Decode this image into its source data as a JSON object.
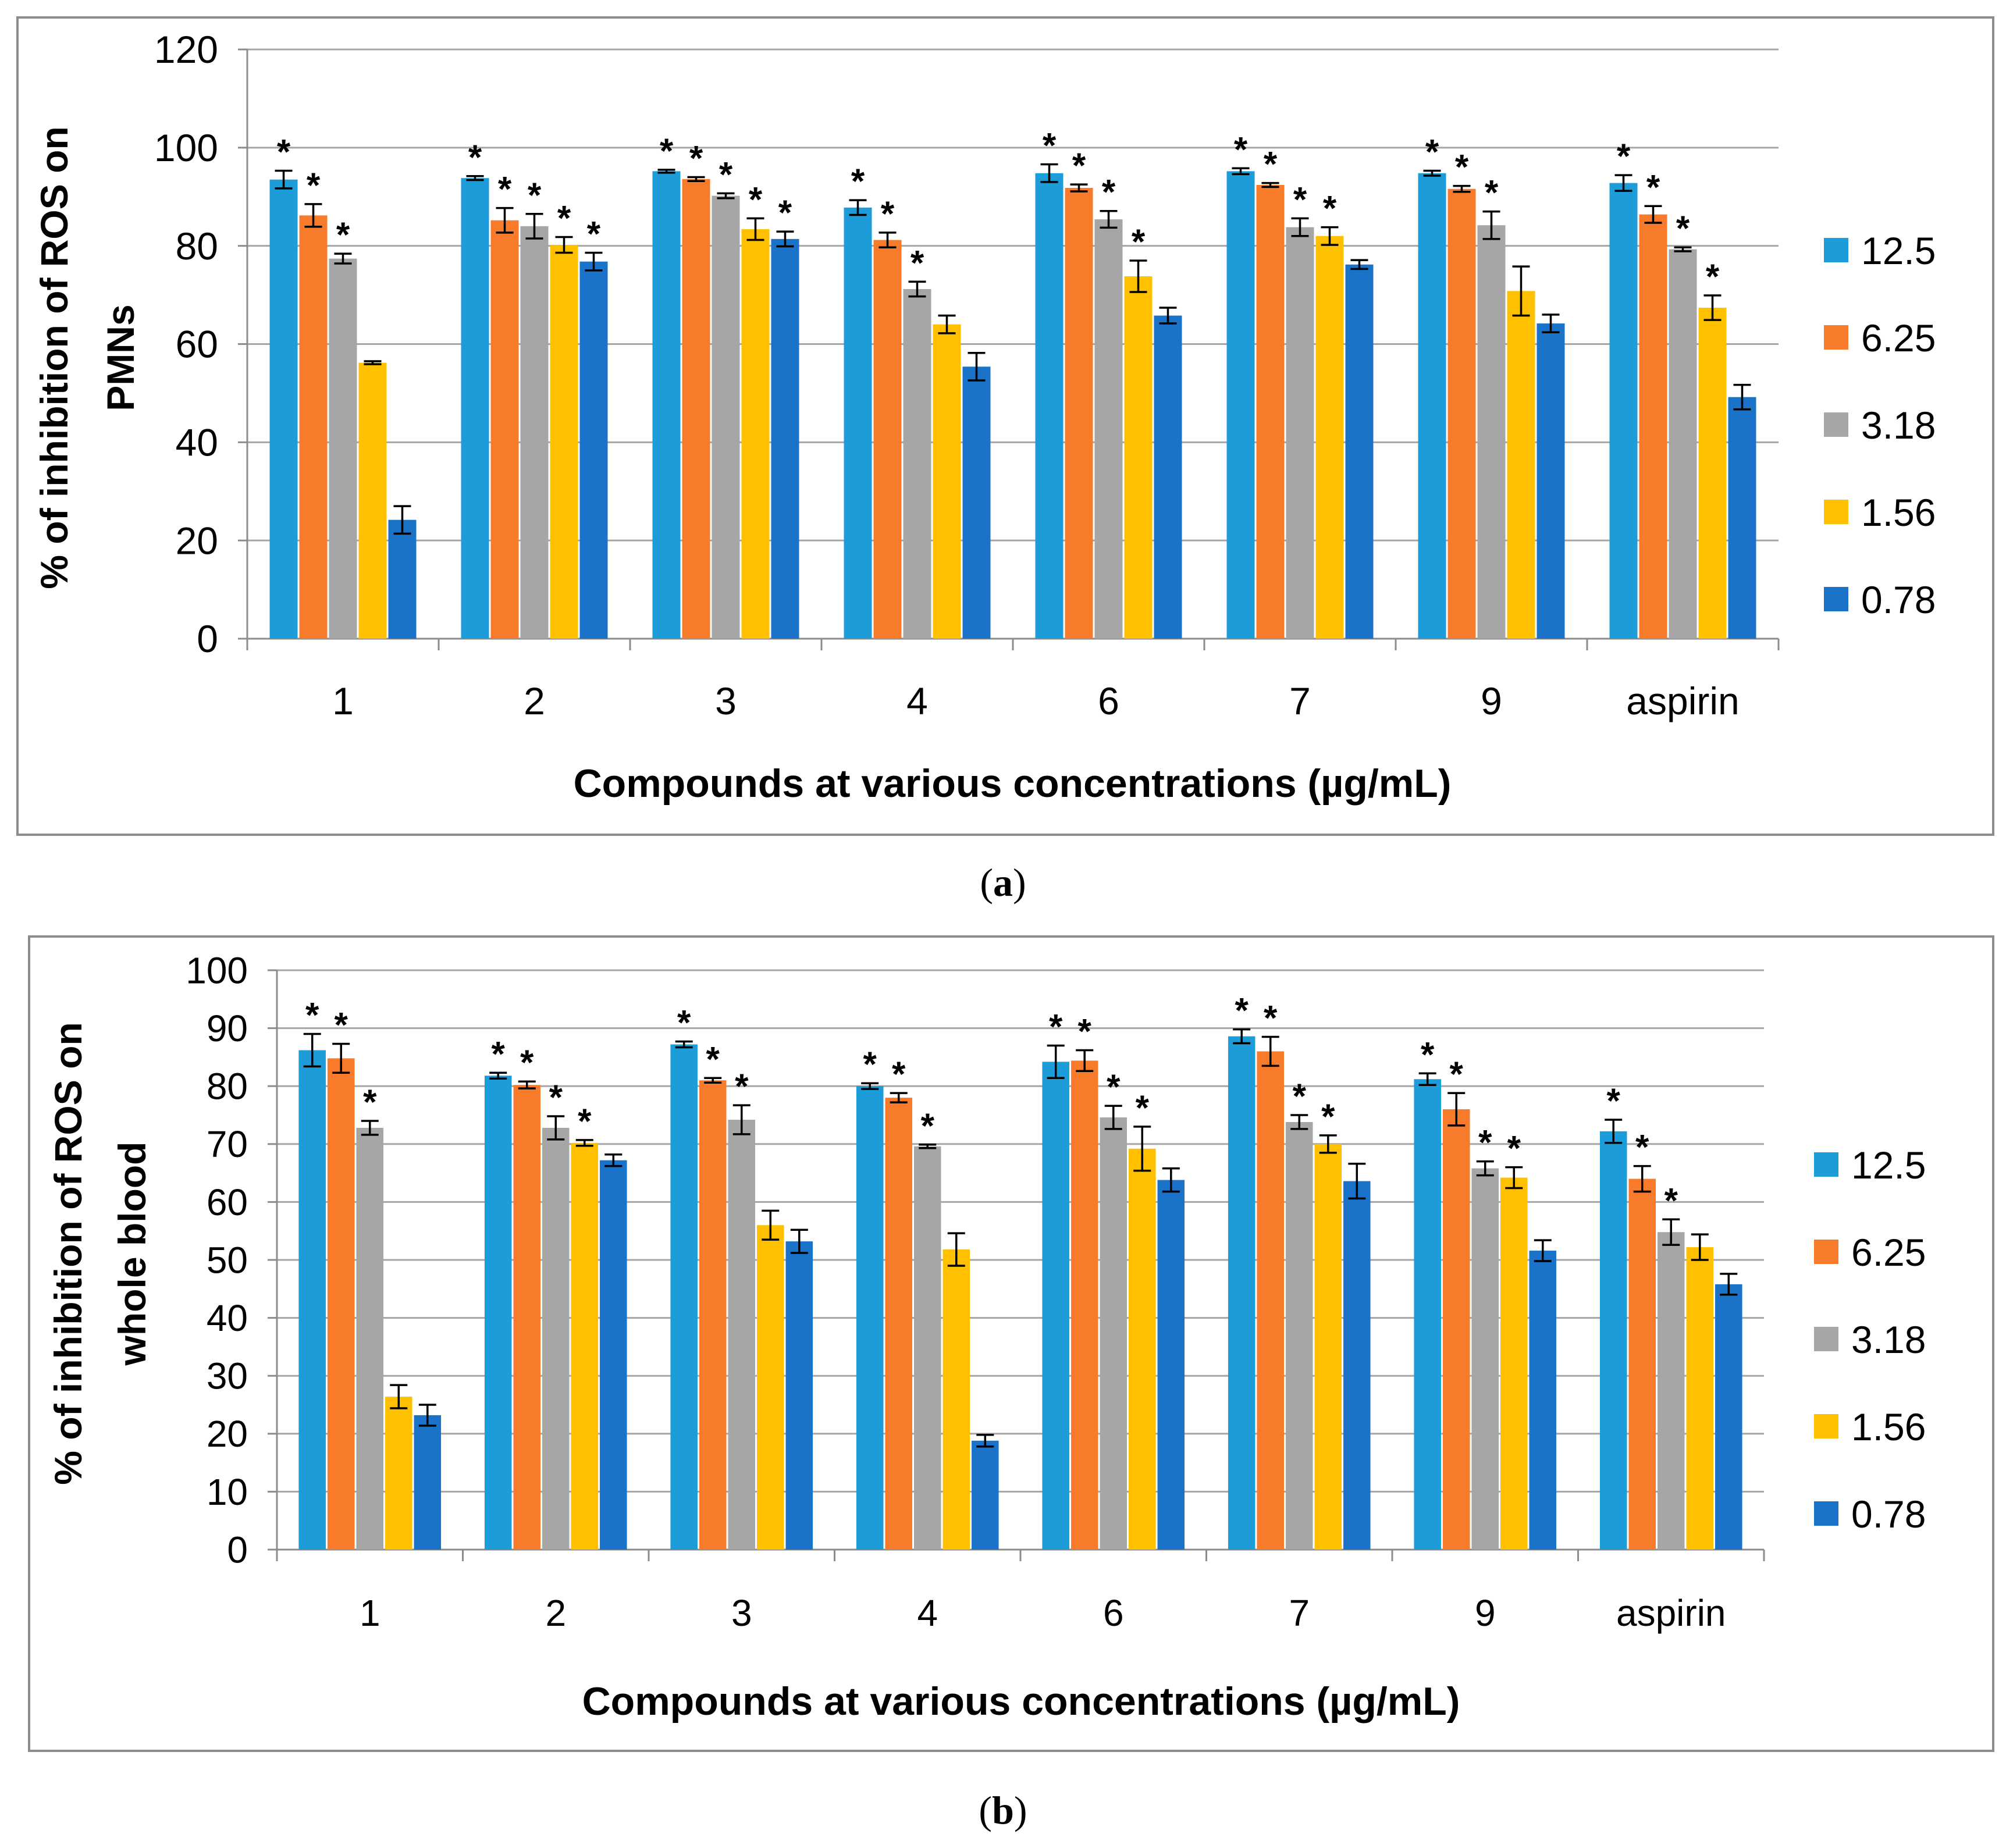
{
  "colors": {
    "12.5": "#1C9CD9",
    "6.25": "#F77B2B",
    "3.18": "#A6A6A6",
    "1.56": "#FFC000",
    "0.78": "#1A72C9",
    "grid": "#A6A6A6",
    "frame": "#8C8C8C",
    "text": "#000000"
  },
  "chart_data": [
    {
      "type": "bar",
      "panel": "a",
      "caption_open": "(",
      "caption_letter": "a",
      "caption_close": ")",
      "title": "",
      "xlabel": "Compounds at various concentrations (µg/mL)",
      "ylabel_line1": "% of inhibition of ROS on",
      "ylabel_line2": "PMNs",
      "ylim": [
        0,
        120
      ],
      "ytick_step": 20,
      "ytick_labels": [
        "0",
        "20",
        "40",
        "60",
        "80",
        "100",
        "120"
      ],
      "grid": true,
      "legend_position": "right",
      "categories": [
        "1",
        "2",
        "3",
        "4",
        "6",
        "7",
        "9",
        "aspirin"
      ],
      "series": [
        {
          "name": "12.5",
          "values": [
            93.5,
            93.8,
            95.2,
            87.8,
            94.8,
            95.2,
            94.8,
            92.8
          ],
          "errors": [
            1.8,
            0.4,
            0.3,
            1.5,
            1.8,
            0.6,
            0.5,
            1.6
          ],
          "significant": [
            true,
            true,
            true,
            true,
            true,
            true,
            true,
            true
          ]
        },
        {
          "name": "6.25",
          "values": [
            86.2,
            85.2,
            93.6,
            81.2,
            91.8,
            92.4,
            91.6,
            86.4
          ],
          "errors": [
            2.3,
            2.5,
            0.4,
            1.5,
            0.7,
            0.4,
            0.6,
            1.7
          ],
          "significant": [
            true,
            true,
            true,
            true,
            true,
            true,
            true,
            true
          ]
        },
        {
          "name": "3.18",
          "values": [
            77.4,
            84.0,
            90.2,
            71.2,
            85.4,
            83.8,
            84.2,
            79.3
          ],
          "errors": [
            1.0,
            2.5,
            0.5,
            1.5,
            1.7,
            1.8,
            2.8,
            0.4
          ],
          "significant": [
            true,
            true,
            true,
            true,
            true,
            true,
            true,
            true
          ]
        },
        {
          "name": "1.56",
          "values": [
            56.2,
            80.2,
            83.4,
            64.0,
            73.8,
            82.0,
            70.8,
            67.4
          ],
          "errors": [
            0.3,
            1.6,
            2.2,
            1.8,
            3.2,
            1.8,
            5.0,
            2.5
          ],
          "significant": [
            false,
            true,
            true,
            false,
            true,
            true,
            false,
            true
          ]
        },
        {
          "name": "0.78",
          "values": [
            24.2,
            76.8,
            81.4,
            55.4,
            65.8,
            76.2,
            64.2,
            49.2
          ],
          "errors": [
            2.8,
            1.8,
            1.5,
            2.8,
            1.6,
            0.9,
            1.8,
            2.5
          ],
          "significant": [
            false,
            true,
            true,
            false,
            false,
            false,
            false,
            false
          ]
        }
      ]
    },
    {
      "type": "bar",
      "panel": "b",
      "caption_open": "(",
      "caption_letter": "b",
      "caption_close": ")",
      "title": "",
      "xlabel": "Compounds at various concentrations (µg/mL)",
      "ylabel_line1": "% of inhibition of ROS on",
      "ylabel_line2": "whole blood",
      "ylim": [
        0,
        100
      ],
      "ytick_step": 10,
      "ytick_labels": [
        "0",
        "10",
        "20",
        "30",
        "40",
        "50",
        "60",
        "70",
        "80",
        "90",
        "100"
      ],
      "grid": true,
      "legend_position": "right",
      "categories": [
        "1",
        "2",
        "3",
        "4",
        "6",
        "7",
        "9",
        "aspirin"
      ],
      "series": [
        {
          "name": "12.5",
          "values": [
            86.2,
            81.8,
            87.2,
            80.0,
            84.2,
            88.6,
            81.2,
            72.2
          ],
          "errors": [
            2.8,
            0.5,
            0.5,
            0.5,
            2.8,
            1.2,
            1.0,
            2.0
          ],
          "significant": [
            true,
            true,
            true,
            true,
            true,
            true,
            true,
            true
          ]
        },
        {
          "name": "6.25",
          "values": [
            84.8,
            80.2,
            81.0,
            78.0,
            84.4,
            86.0,
            76.0,
            64.0
          ],
          "errors": [
            2.5,
            0.6,
            0.4,
            0.8,
            1.8,
            2.5,
            2.8,
            2.2
          ],
          "significant": [
            true,
            true,
            true,
            true,
            true,
            true,
            true,
            true
          ]
        },
        {
          "name": "3.18",
          "values": [
            72.8,
            72.8,
            74.2,
            69.6,
            74.6,
            73.8,
            65.8,
            54.8
          ],
          "errors": [
            1.2,
            2.0,
            2.5,
            0.3,
            2.0,
            1.2,
            1.2,
            2.2
          ],
          "significant": [
            true,
            true,
            true,
            true,
            true,
            true,
            true,
            true
          ]
        },
        {
          "name": "1.56",
          "values": [
            26.4,
            70.2,
            56.0,
            51.8,
            69.2,
            70.0,
            64.2,
            52.2
          ],
          "errors": [
            2.0,
            0.5,
            2.5,
            2.8,
            3.8,
            1.5,
            1.8,
            2.2
          ],
          "significant": [
            false,
            true,
            false,
            false,
            true,
            true,
            true,
            false
          ]
        },
        {
          "name": "0.78",
          "values": [
            23.2,
            67.2,
            53.2,
            18.8,
            63.8,
            63.6,
            51.6,
            45.8
          ],
          "errors": [
            1.8,
            1.0,
            2.0,
            1.0,
            2.0,
            3.0,
            1.8,
            1.8
          ],
          "significant": [
            false,
            false,
            false,
            false,
            false,
            false,
            false,
            false
          ]
        }
      ]
    }
  ]
}
